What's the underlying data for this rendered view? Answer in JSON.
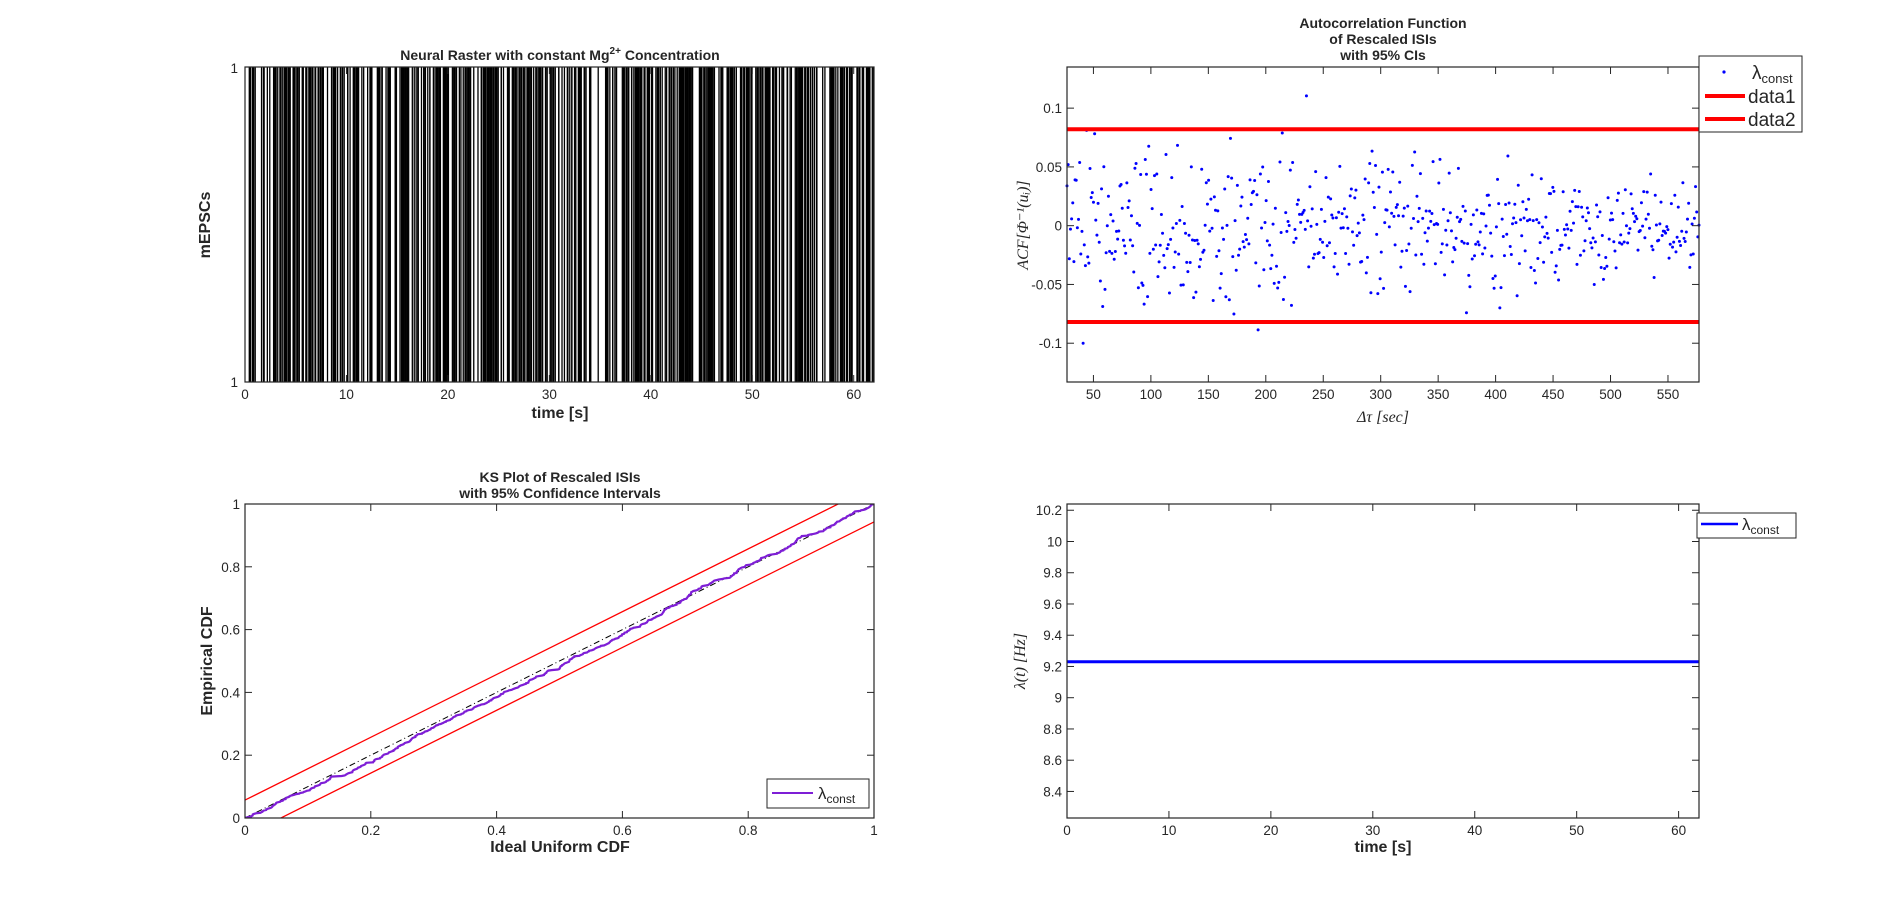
{
  "colors": {
    "spike": "#000000",
    "acf_point": "#0000ff",
    "ci": "#ff0000",
    "ks_curve": "#7e1ed6",
    "ideal": "#000000",
    "lambda": "#0000ff",
    "axis": "#262626"
  },
  "chart_data": [
    {
      "type": "raster",
      "title_main": "Neural Raster with constant Mg",
      "title_sup": "2+",
      "title_end": " Concentration",
      "xlabel": "time [s]",
      "ylabel": "mEPSCs",
      "xlim": [
        0,
        62
      ],
      "xticks": [
        0,
        10,
        20,
        30,
        40,
        50,
        60
      ],
      "yticks_labels": [
        "1",
        "1"
      ],
      "rate_hz": 9.23,
      "n_spikes_approx": 572,
      "seed": 12345
    },
    {
      "type": "scatter",
      "title_lines": [
        "Autocorrelation Function",
        "of Rescaled ISIs",
        "with 95% CIs"
      ],
      "xlabel": "Δτ [sec]",
      "ylabel": "ACF[Φ⁻¹(uᵢ)]",
      "xlim": [
        27,
        577
      ],
      "ylim": [
        -0.133,
        0.135
      ],
      "xticks": [
        50,
        100,
        150,
        200,
        250,
        300,
        350,
        400,
        450,
        500,
        550
      ],
      "yticks": [
        -0.1,
        -0.05,
        0,
        0.05,
        0.1
      ],
      "ytick_labels": [
        "-0.1",
        "-0.05",
        "0",
        "0.05",
        "0.1"
      ],
      "n_points": 550,
      "ci_upper": 0.082,
      "ci_lower": -0.082,
      "seed": 777,
      "legend": {
        "position": "outside-top-right",
        "entries": [
          {
            "name": "λ",
            "sub": "const"
          },
          {
            "name": "data1"
          },
          {
            "name": "data2"
          }
        ]
      }
    },
    {
      "type": "line",
      "title_lines": [
        "KS Plot of Rescaled ISIs",
        "with 95% Confidence Intervals"
      ],
      "xlabel": "Ideal Uniform CDF",
      "ylabel": "Empirical CDF",
      "xlim": [
        0,
        1
      ],
      "ylim": [
        0,
        1
      ],
      "xticks": [
        0,
        0.2,
        0.4,
        0.6,
        0.8,
        1
      ],
      "xtick_labels": [
        "0",
        "0.2",
        "0.4",
        "0.6",
        "0.8",
        "1"
      ],
      "yticks": [
        0,
        0.2,
        0.4,
        0.6,
        0.8,
        1
      ],
      "ytick_labels": [
        "0",
        "0.2",
        "0.4",
        "0.6",
        "0.8",
        "1"
      ],
      "ci_halfwidth": 0.057,
      "n_points": 572,
      "seed": 4242,
      "legend": {
        "position": "bottom-right",
        "entries": [
          {
            "name": "λ",
            "sub": "const"
          }
        ]
      }
    },
    {
      "type": "line",
      "xlabel": "time [s]",
      "ylabel": "λ(t) [Hz]",
      "xlim": [
        0,
        62
      ],
      "ylim": [
        8.23,
        10.24
      ],
      "xticks": [
        0,
        10,
        20,
        30,
        40,
        50,
        60
      ],
      "yticks": [
        8.4,
        8.6,
        8.8,
        9,
        9.2,
        9.4,
        9.6,
        9.8,
        10,
        10.2
      ],
      "ytick_labels": [
        "8.4",
        "8.6",
        "8.8",
        "9",
        "9.2",
        "9.4",
        "9.6",
        "9.8",
        "10",
        "10.2"
      ],
      "x": [
        0,
        62
      ],
      "y": [
        9.23,
        9.23
      ],
      "legend": {
        "position": "top-right",
        "entries": [
          {
            "name": "λ",
            "sub": "const"
          }
        ]
      }
    }
  ]
}
